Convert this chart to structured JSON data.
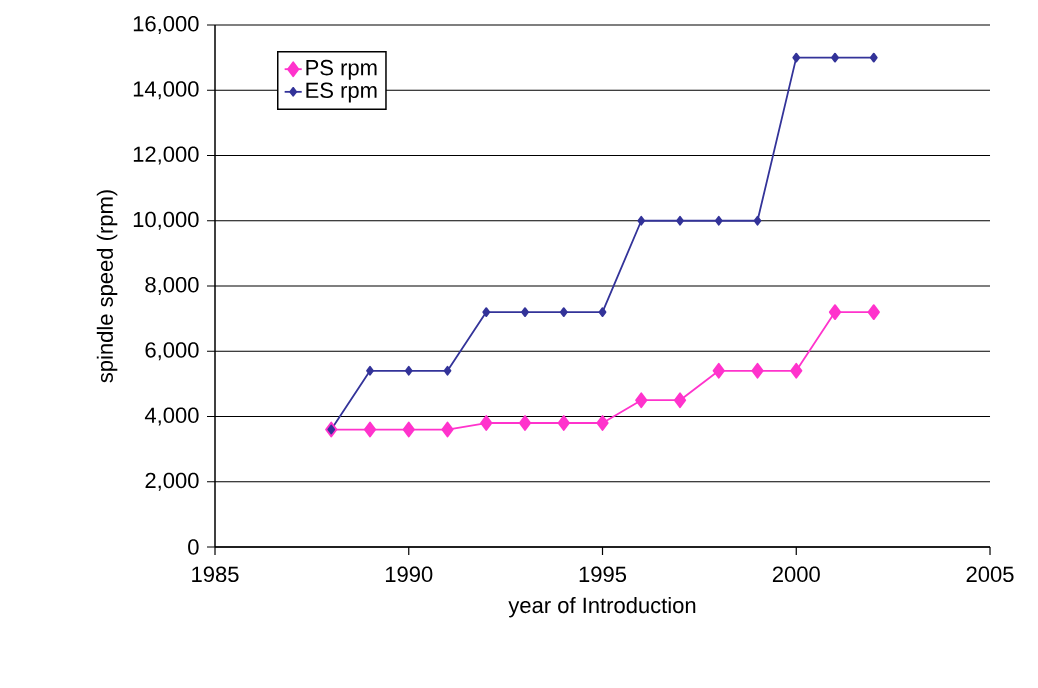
{
  "chart_data": {
    "type": "line",
    "xlabel": "year of Introduction",
    "ylabel": "spindle speed (rpm)",
    "x": [
      1988,
      1989,
      1990,
      1991,
      1992,
      1993,
      1994,
      1995,
      1996,
      1997,
      1998,
      1999,
      2000,
      2001,
      2002
    ],
    "series": [
      {
        "name": "PS rpm",
        "color": "#ff33cc",
        "values": [
          3600,
          3600,
          3600,
          3600,
          3800,
          3800,
          3800,
          3800,
          4500,
          4500,
          5400,
          5400,
          5400,
          7200,
          7200
        ]
      },
      {
        "name": "ES rpm",
        "color": "#333399",
        "values": [
          3600,
          5400,
          5400,
          5400,
          7200,
          7200,
          7200,
          7200,
          10000,
          10000,
          10000,
          10000,
          15000,
          15000,
          15000
        ]
      }
    ],
    "xlim": [
      1985,
      2005
    ],
    "xticks": [
      1985,
      1990,
      1995,
      2000,
      2005
    ],
    "ylim": [
      0,
      16000
    ],
    "yticks": [
      0,
      {
        "value": 2000,
        "label": "2,000"
      },
      {
        "value": 4000,
        "label": "4,000"
      },
      {
        "value": 6000,
        "label": "6,000"
      },
      {
        "value": 8000,
        "label": "8,000"
      },
      {
        "value": 10000,
        "label": "10,000"
      },
      {
        "value": 12000,
        "label": "12,000"
      },
      {
        "value": 14000,
        "label": "14,000"
      },
      {
        "value": 16000,
        "label": "16,000"
      }
    ],
    "grid": "y",
    "legend": "top left",
    "marker": "diamond",
    "line_style": "solid"
  }
}
